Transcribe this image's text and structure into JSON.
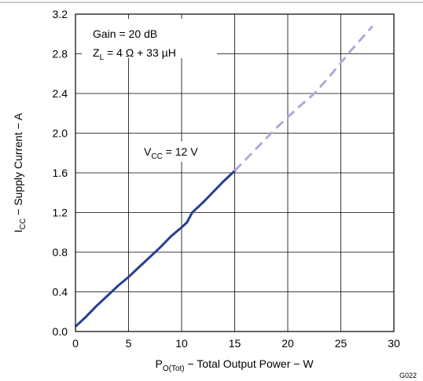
{
  "chart_data": {
    "type": "line",
    "title": "",
    "xlabel": {
      "main": "P",
      "sub": "O(Tot)",
      "rest": " − Total Output Power − W"
    },
    "ylabel": {
      "main": "I",
      "sub": "CC",
      "rest": " − Supply Current − A"
    },
    "xlim": [
      0,
      30
    ],
    "ylim": [
      0,
      3.2
    ],
    "x_ticks": [
      0,
      5,
      10,
      15,
      20,
      25,
      30
    ],
    "x_tick_labels": [
      "0",
      "5",
      "10",
      "15",
      "20",
      "25",
      "30"
    ],
    "y_ticks": [
      0,
      0.4,
      0.8,
      1.2,
      1.6,
      2.0,
      2.4,
      2.8,
      3.2
    ],
    "y_tick_labels": [
      "0.0",
      "0.4",
      "0.8",
      "1.2",
      "1.6",
      "2.0",
      "2.4",
      "2.8",
      "3.2"
    ],
    "grid": true,
    "series": [
      {
        "style": "solid",
        "color": "#283F91",
        "x": [
          0,
          1,
          2,
          3,
          4,
          5,
          6,
          7,
          8,
          9,
          10,
          10.5,
          11,
          12,
          13,
          14,
          15
        ],
        "y": [
          0.05,
          0.15,
          0.26,
          0.36,
          0.46,
          0.55,
          0.65,
          0.75,
          0.85,
          0.96,
          1.05,
          1.1,
          1.2,
          1.3,
          1.41,
          1.52,
          1.62
        ]
      },
      {
        "style": "dashed",
        "color": "#A9ACDA",
        "x": [
          15,
          17,
          19,
          21,
          22.5,
          24,
          26,
          28
        ],
        "y": [
          1.62,
          1.84,
          2.06,
          2.26,
          2.4,
          2.58,
          2.84,
          3.08
        ]
      }
    ],
    "annotations": [
      {
        "id": "gain",
        "text": "Gain = 20 dB"
      },
      {
        "id": "zl",
        "main": "Z",
        "sub": "L",
        "rest": " = 4 Ω + 33 µH"
      },
      {
        "id": "vcc",
        "main": "V",
        "sub": "CC",
        "rest": " = 12 V"
      }
    ],
    "figure_code": "G022"
  }
}
